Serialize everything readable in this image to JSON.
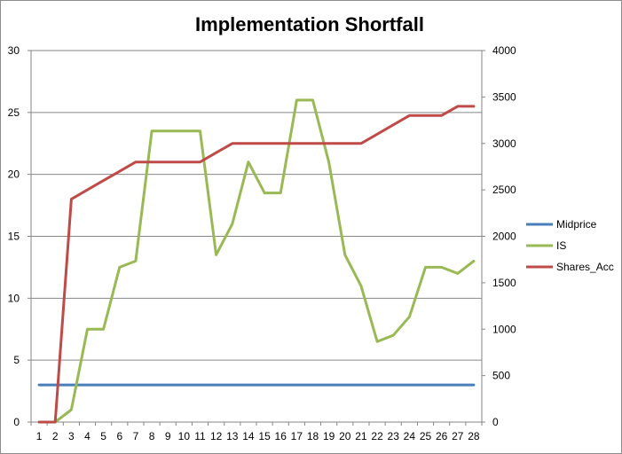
{
  "chart_data": {
    "type": "line",
    "title": "Implementation Shortfall",
    "xlabel": "",
    "ylabel": "",
    "categories": [
      "1",
      "2",
      "3",
      "4",
      "5",
      "6",
      "7",
      "8",
      "9",
      "10",
      "11",
      "12",
      "13",
      "14",
      "15",
      "16",
      "17",
      "18",
      "19",
      "20",
      "21",
      "22",
      "23",
      "24",
      "25",
      "26",
      "27",
      "28"
    ],
    "ylim": [
      0,
      30
    ],
    "y_ticks": [
      "0",
      "5",
      "10",
      "15",
      "20",
      "25",
      "30"
    ],
    "y2lim": [
      0,
      4000
    ],
    "y2_ticks": [
      "0",
      "500",
      "1000",
      "1500",
      "2000",
      "2500",
      "3000",
      "3500",
      "4000"
    ],
    "grid": true,
    "legend_position": "right",
    "series": [
      {
        "name": "Midprice",
        "axis": "left",
        "color": "#4a7ebb",
        "values": [
          3,
          3,
          3,
          3,
          3,
          3,
          3,
          3,
          3,
          3,
          3,
          3,
          3,
          3,
          3,
          3,
          3,
          3,
          3,
          3,
          3,
          3,
          3,
          3,
          3,
          3,
          3,
          3
        ]
      },
      {
        "name": "IS",
        "axis": "left",
        "color": "#98b954",
        "values": [
          0,
          0,
          1,
          7.5,
          7.5,
          12.5,
          13,
          23.5,
          23.5,
          23.5,
          23.5,
          13.5,
          16,
          21,
          18.5,
          18.5,
          26,
          26,
          21,
          13.5,
          11,
          6.5,
          7,
          8.5,
          12.5,
          12.5,
          12,
          13
        ]
      },
      {
        "name": "Shares_Acc",
        "axis": "right",
        "color": "#be4b48",
        "values": [
          0,
          0,
          2400,
          2500,
          2600,
          2700,
          2800,
          2800,
          2800,
          2800,
          2800,
          2900,
          3000,
          3000,
          3000,
          3000,
          3000,
          3000,
          3000,
          3000,
          3000,
          3100,
          3200,
          3300,
          3300,
          3300,
          3400,
          3400
        ]
      }
    ]
  }
}
